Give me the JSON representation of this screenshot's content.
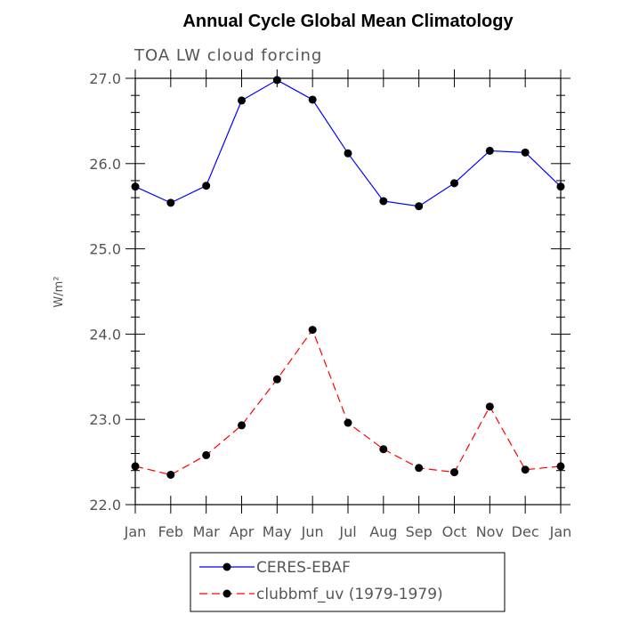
{
  "chart_data": {
    "type": "line",
    "title": "Annual Cycle Global Mean Climatology",
    "subtitle": "TOA LW cloud forcing",
    "ylabel": "W/m²",
    "xlabel": "",
    "categories": [
      "Jan",
      "Feb",
      "Mar",
      "Apr",
      "May",
      "Jun",
      "Jul",
      "Aug",
      "Sep",
      "Oct",
      "Nov",
      "Dec",
      "Jan"
    ],
    "ylim": [
      22.0,
      27.0
    ],
    "yticks": [
      "22.0",
      "23.0",
      "24.0",
      "25.0",
      "26.0",
      "27.0"
    ],
    "grid": false,
    "legend_position": "bottom-center",
    "series": [
      {
        "name": "CERES-EBAF",
        "color": "#0000ff",
        "dash": "solid",
        "values": [
          25.73,
          25.54,
          25.74,
          26.74,
          26.98,
          26.75,
          26.12,
          25.56,
          25.5,
          25.77,
          26.15,
          26.13,
          25.73
        ]
      },
      {
        "name": "clubbmf_uv (1979-1979)",
        "color": "#ff0000",
        "dash": "dashed",
        "values": [
          22.45,
          22.35,
          22.58,
          22.93,
          23.47,
          24.05,
          22.96,
          22.65,
          22.43,
          22.38,
          23.15,
          22.41,
          22.45
        ]
      }
    ]
  }
}
